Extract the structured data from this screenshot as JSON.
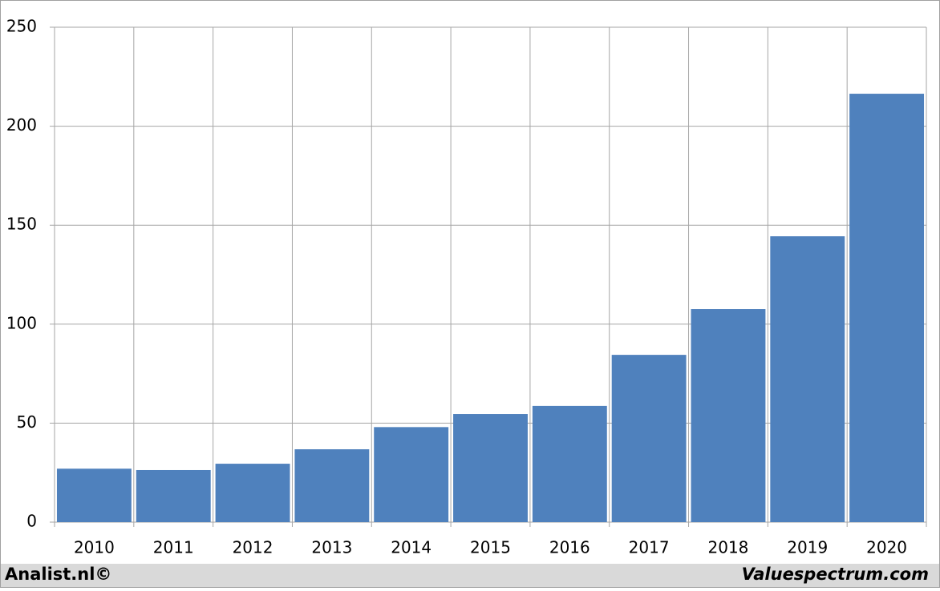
{
  "chart_data": {
    "type": "bar",
    "categories": [
      "2010",
      "2011",
      "2012",
      "2013",
      "2014",
      "2015",
      "2016",
      "2017",
      "2018",
      "2019",
      "2020"
    ],
    "values": [
      27,
      26.3,
      29.5,
      36.8,
      48,
      54.6,
      58.7,
      84.5,
      107.6,
      144.4,
      216.4
    ],
    "color": "#4f81bd",
    "ylim": [
      0,
      250
    ],
    "yticks": [
      0,
      50,
      100,
      150,
      200,
      250
    ],
    "grid": true,
    "footer_left": "Analist.nl©",
    "footer_right": "Valuespectrum.com"
  }
}
